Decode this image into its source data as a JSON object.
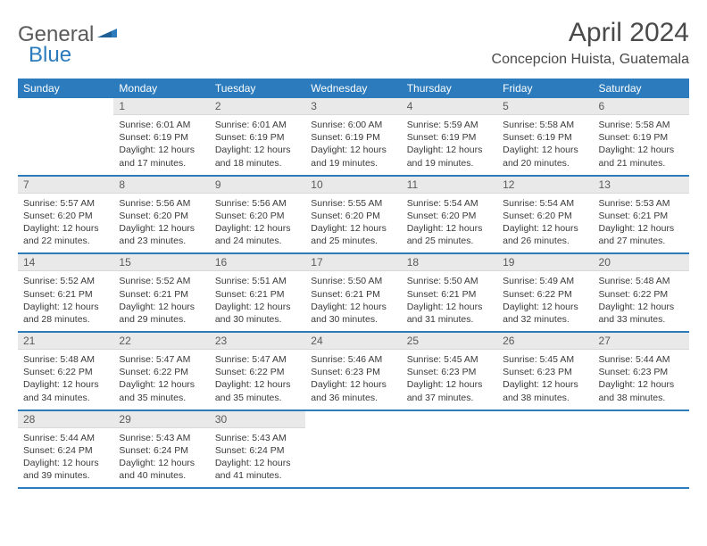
{
  "logo": {
    "general": "General",
    "blue": "Blue"
  },
  "title": "April 2024",
  "location": "Concepcion Huista, Guatemala",
  "colors": {
    "accent": "#2b7bbd",
    "daynum_bg": "#e9e9e9",
    "text": "#3a3a3a",
    "title_text": "#4a4a4a"
  },
  "day_headers": [
    "Sunday",
    "Monday",
    "Tuesday",
    "Wednesday",
    "Thursday",
    "Friday",
    "Saturday"
  ],
  "weeks": [
    [
      null,
      {
        "n": "1",
        "sunrise": "6:01 AM",
        "sunset": "6:19 PM",
        "dl": "12 hours and 17 minutes."
      },
      {
        "n": "2",
        "sunrise": "6:01 AM",
        "sunset": "6:19 PM",
        "dl": "12 hours and 18 minutes."
      },
      {
        "n": "3",
        "sunrise": "6:00 AM",
        "sunset": "6:19 PM",
        "dl": "12 hours and 19 minutes."
      },
      {
        "n": "4",
        "sunrise": "5:59 AM",
        "sunset": "6:19 PM",
        "dl": "12 hours and 19 minutes."
      },
      {
        "n": "5",
        "sunrise": "5:58 AM",
        "sunset": "6:19 PM",
        "dl": "12 hours and 20 minutes."
      },
      {
        "n": "6",
        "sunrise": "5:58 AM",
        "sunset": "6:19 PM",
        "dl": "12 hours and 21 minutes."
      }
    ],
    [
      {
        "n": "7",
        "sunrise": "5:57 AM",
        "sunset": "6:20 PM",
        "dl": "12 hours and 22 minutes."
      },
      {
        "n": "8",
        "sunrise": "5:56 AM",
        "sunset": "6:20 PM",
        "dl": "12 hours and 23 minutes."
      },
      {
        "n": "9",
        "sunrise": "5:56 AM",
        "sunset": "6:20 PM",
        "dl": "12 hours and 24 minutes."
      },
      {
        "n": "10",
        "sunrise": "5:55 AM",
        "sunset": "6:20 PM",
        "dl": "12 hours and 25 minutes."
      },
      {
        "n": "11",
        "sunrise": "5:54 AM",
        "sunset": "6:20 PM",
        "dl": "12 hours and 25 minutes."
      },
      {
        "n": "12",
        "sunrise": "5:54 AM",
        "sunset": "6:20 PM",
        "dl": "12 hours and 26 minutes."
      },
      {
        "n": "13",
        "sunrise": "5:53 AM",
        "sunset": "6:21 PM",
        "dl": "12 hours and 27 minutes."
      }
    ],
    [
      {
        "n": "14",
        "sunrise": "5:52 AM",
        "sunset": "6:21 PM",
        "dl": "12 hours and 28 minutes."
      },
      {
        "n": "15",
        "sunrise": "5:52 AM",
        "sunset": "6:21 PM",
        "dl": "12 hours and 29 minutes."
      },
      {
        "n": "16",
        "sunrise": "5:51 AM",
        "sunset": "6:21 PM",
        "dl": "12 hours and 30 minutes."
      },
      {
        "n": "17",
        "sunrise": "5:50 AM",
        "sunset": "6:21 PM",
        "dl": "12 hours and 30 minutes."
      },
      {
        "n": "18",
        "sunrise": "5:50 AM",
        "sunset": "6:21 PM",
        "dl": "12 hours and 31 minutes."
      },
      {
        "n": "19",
        "sunrise": "5:49 AM",
        "sunset": "6:22 PM",
        "dl": "12 hours and 32 minutes."
      },
      {
        "n": "20",
        "sunrise": "5:48 AM",
        "sunset": "6:22 PM",
        "dl": "12 hours and 33 minutes."
      }
    ],
    [
      {
        "n": "21",
        "sunrise": "5:48 AM",
        "sunset": "6:22 PM",
        "dl": "12 hours and 34 minutes."
      },
      {
        "n": "22",
        "sunrise": "5:47 AM",
        "sunset": "6:22 PM",
        "dl": "12 hours and 35 minutes."
      },
      {
        "n": "23",
        "sunrise": "5:47 AM",
        "sunset": "6:22 PM",
        "dl": "12 hours and 35 minutes."
      },
      {
        "n": "24",
        "sunrise": "5:46 AM",
        "sunset": "6:23 PM",
        "dl": "12 hours and 36 minutes."
      },
      {
        "n": "25",
        "sunrise": "5:45 AM",
        "sunset": "6:23 PM",
        "dl": "12 hours and 37 minutes."
      },
      {
        "n": "26",
        "sunrise": "5:45 AM",
        "sunset": "6:23 PM",
        "dl": "12 hours and 38 minutes."
      },
      {
        "n": "27",
        "sunrise": "5:44 AM",
        "sunset": "6:23 PM",
        "dl": "12 hours and 38 minutes."
      }
    ],
    [
      {
        "n": "28",
        "sunrise": "5:44 AM",
        "sunset": "6:24 PM",
        "dl": "12 hours and 39 minutes."
      },
      {
        "n": "29",
        "sunrise": "5:43 AM",
        "sunset": "6:24 PM",
        "dl": "12 hours and 40 minutes."
      },
      {
        "n": "30",
        "sunrise": "5:43 AM",
        "sunset": "6:24 PM",
        "dl": "12 hours and 41 minutes."
      },
      null,
      null,
      null,
      null
    ]
  ],
  "labels": {
    "sunrise": "Sunrise:",
    "sunset": "Sunset:",
    "daylight": "Daylight:"
  }
}
